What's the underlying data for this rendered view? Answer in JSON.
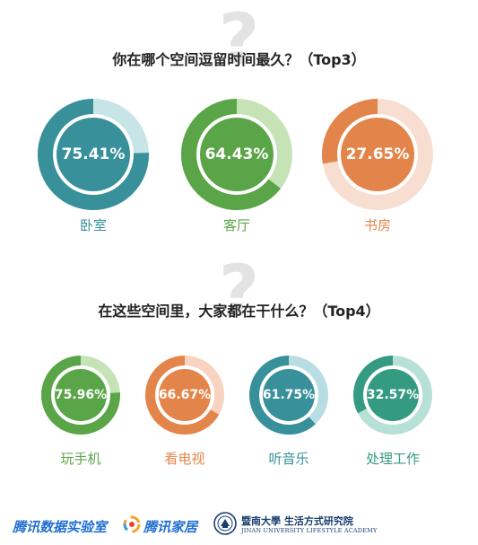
{
  "question_mark": "?",
  "section1": {
    "title": "你在哪个空间逗留时间最久？（Top3）"
  },
  "section2": {
    "title": "在这些空间里，大家都在干什么？（Top4）"
  },
  "chart_data": [
    {
      "type": "donut",
      "title": "你在哪个空间逗留时间最久？（Top3）",
      "categories": [
        "卧室",
        "客厅",
        "书房"
      ],
      "values": [
        75.41,
        64.43,
        27.65
      ],
      "labels": [
        "75.41%",
        "64.43%",
        "27.65%"
      ],
      "colors": [
        {
          "main": "#37909a",
          "light": "#c7e4e7"
        },
        {
          "main": "#5aa548",
          "light": "#c6e3b6"
        },
        {
          "main": "#e3854b",
          "light": "#f8ded0"
        }
      ]
    },
    {
      "type": "donut",
      "title": "在这些空间里，大家都在干什么？（Top4）",
      "categories": [
        "玩手机",
        "看电视",
        "听音乐",
        "处理工作"
      ],
      "values": [
        75.96,
        66.67,
        61.75,
        32.57
      ],
      "labels": [
        "75.96%",
        "66.67%",
        "61.75%",
        "32.57%"
      ],
      "colors": [
        {
          "main": "#5aa548",
          "light": "#c6e3b6"
        },
        {
          "main": "#e3854b",
          "light": "#f8d4c0"
        },
        {
          "main": "#37909a",
          "light": "#b8dde2"
        },
        {
          "main": "#359a82",
          "light": "#b7e1d6"
        }
      ]
    }
  ],
  "footer": {
    "brand_lab": "腾讯数据实验室",
    "brand_home": "腾讯家居",
    "university_cn": "暨南大學 生活方式研究院",
    "university_en": "JINAN UNIVERSITY LIFESTYLE ACADEMY"
  }
}
